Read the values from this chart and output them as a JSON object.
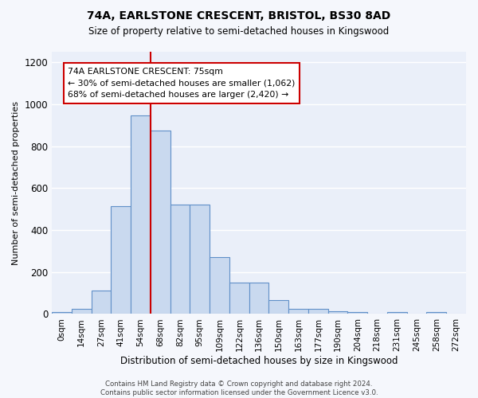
{
  "title1": "74A, EARLSTONE CRESCENT, BRISTOL, BS30 8AD",
  "title2": "Size of property relative to semi-detached houses in Kingswood",
  "xlabel": "Distribution of semi-detached houses by size in Kingswood",
  "ylabel": "Number of semi-detached properties",
  "bin_labels": [
    "0sqm",
    "14sqm",
    "27sqm",
    "41sqm",
    "54sqm",
    "68sqm",
    "82sqm",
    "95sqm",
    "109sqm",
    "122sqm",
    "136sqm",
    "150sqm",
    "163sqm",
    "177sqm",
    "190sqm",
    "204sqm",
    "218sqm",
    "231sqm",
    "245sqm",
    "258sqm",
    "272sqm"
  ],
  "bar_heights": [
    10,
    25,
    110,
    515,
    945,
    875,
    520,
    520,
    270,
    150,
    150,
    65,
    25,
    25,
    15,
    10,
    0,
    10,
    0,
    10,
    0
  ],
  "bar_color": "#c9d9ef",
  "bar_edge_color": "#6090c8",
  "annotation_line1": "74A EARLSTONE CRESCENT: 75sqm",
  "annotation_line2": "← 30% of semi-detached houses are smaller (1,062)",
  "annotation_line3": "68% of semi-detached houses are larger (2,420) →",
  "red_line_x": 4.5,
  "ylim": [
    0,
    1250
  ],
  "yticks": [
    0,
    200,
    400,
    600,
    800,
    1000,
    1200
  ],
  "background_color": "#eaeff9",
  "grid_color": "#ffffff",
  "red_line_color": "#cc0000",
  "annotation_box_color": "#ffffff",
  "annotation_box_edge": "#cc0000",
  "footer_line1": "Contains HM Land Registry data © Crown copyright and database right 2024.",
  "footer_line2": "Contains public sector information licensed under the Government Licence v3.0."
}
